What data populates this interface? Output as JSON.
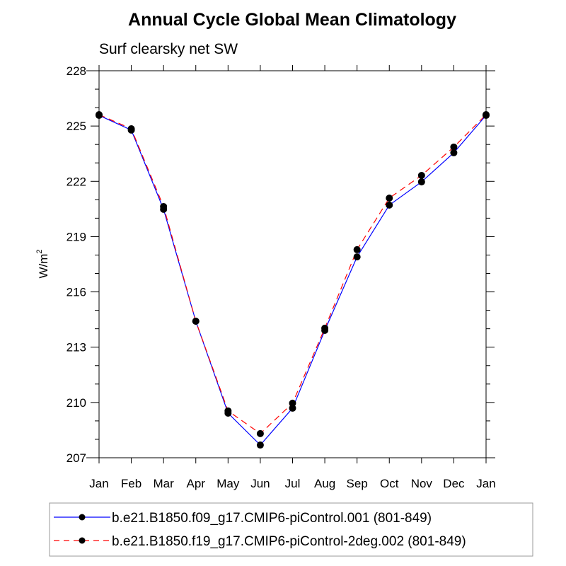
{
  "chart_data": {
    "type": "line",
    "title": "Annual Cycle Global Mean Climatology",
    "subtitle": "Surf clearsky net SW",
    "xlabel": "",
    "ylabel": "W/m",
    "ylabel_superscript": "2",
    "categories": [
      "Jan",
      "Feb",
      "Mar",
      "Apr",
      "May",
      "Jun",
      "Jul",
      "Aug",
      "Sep",
      "Oct",
      "Nov",
      "Dec",
      "Jan"
    ],
    "ylim": [
      207,
      228
    ],
    "yticks": [
      207,
      210,
      213,
      216,
      219,
      222,
      225,
      228
    ],
    "yticks_minor_step": 1,
    "grid": false,
    "legend_position": "bottom",
    "series": [
      {
        "name": "b.e21.B1850.f09_g17.CMIP6-piControl.001 (801-849)",
        "color": "#0000ff",
        "line_style": "solid",
        "marker": "filled-circle",
        "marker_color": "#000000",
        "values": [
          225.58,
          224.78,
          220.48,
          214.41,
          209.42,
          207.69,
          209.69,
          213.91,
          217.9,
          220.71,
          221.97,
          223.55,
          225.58
        ]
      },
      {
        "name": "b.e21.B1850.f19_g17.CMIP6-piControl-2deg.002 (801-849)",
        "color": "#ff0000",
        "line_style": "dashed",
        "marker": "filled-circle",
        "marker_color": "#000000",
        "values": [
          225.62,
          224.85,
          220.63,
          214.41,
          209.54,
          208.31,
          209.96,
          214.03,
          218.29,
          221.09,
          222.32,
          223.86,
          225.62
        ]
      }
    ]
  }
}
